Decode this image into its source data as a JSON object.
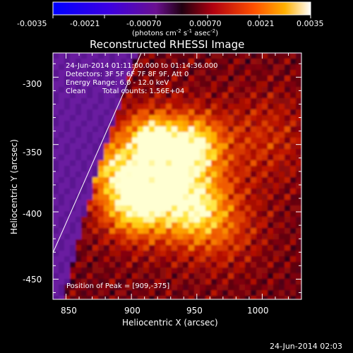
{
  "colorbar": {
    "ticks": [
      "-0.0035",
      "-0.0021",
      "-0.00070",
      "0.00070",
      "0.0021",
      "0.0035"
    ],
    "units_prefix": "(photons cm",
    "units_exp1": "-2",
    "units_mid": " s",
    "units_exp2": "-1",
    "units_mid2": " asec",
    "units_exp3": "-2",
    "units_suffix": ")"
  },
  "image": {
    "title": "Reconstructed RHESSI Image",
    "time_range": "24-Jun-2014 01:11:00.000 to 01:14:36.000",
    "detectors": "Detectors: 3F 5F 6F 7F 8F 9F, Att 0",
    "energy": "Energy Range: 6.0 - 12.0 keV",
    "clean_label": "Clean",
    "counts": "Total counts: 1.56E+04",
    "peak": "Position of Peak = [909,-375]",
    "peak_position": [
      909,
      -375
    ]
  },
  "axes": {
    "xlabel": "Heliocentric X (arcsec)",
    "ylabel": "Heliocentric Y (arcsec)",
    "xlim": [
      840,
      1030
    ],
    "ylim": [
      -465,
      -282
    ],
    "xticks": [
      "850",
      "900",
      "950",
      "1000"
    ],
    "yticks": [
      "-300",
      "-350",
      "-400",
      "-450"
    ],
    "xtick_values": [
      850,
      900,
      950,
      1000
    ],
    "ytick_values": [
      -300,
      -350,
      -400,
      -450
    ]
  },
  "footer": {
    "timestamp": "24-Jun-2014 02:03"
  }
}
